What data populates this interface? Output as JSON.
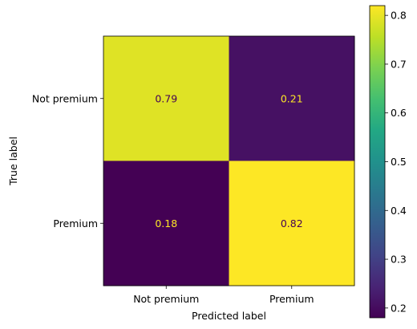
{
  "chart_data": {
    "type": "heatmap",
    "title": "",
    "xlabel": "Predicted label",
    "ylabel": "True label",
    "x_categories": [
      "Not premium",
      "Premium"
    ],
    "y_categories": [
      "Not premium",
      "Premium"
    ],
    "values": [
      [
        0.79,
        0.21
      ],
      [
        0.18,
        0.82
      ]
    ],
    "value_labels": [
      [
        "0.79",
        "0.21"
      ],
      [
        "0.18",
        "0.82"
      ]
    ],
    "colormap": "viridis",
    "colorbar": {
      "range": [
        0.18,
        0.82
      ],
      "ticks": [
        0.2,
        0.3,
        0.4,
        0.5,
        0.6,
        0.7,
        0.8
      ],
      "tick_labels": [
        "0.2",
        "0.3",
        "0.4",
        "0.5",
        "0.6",
        "0.7",
        "0.8"
      ]
    },
    "colors": {
      "low_cell": "#440154",
      "high_cell": "#fde725",
      "text_on_dark": "#fde725",
      "text_on_light": "#440154"
    },
    "grid": false,
    "legend": "colorbar-right"
  }
}
